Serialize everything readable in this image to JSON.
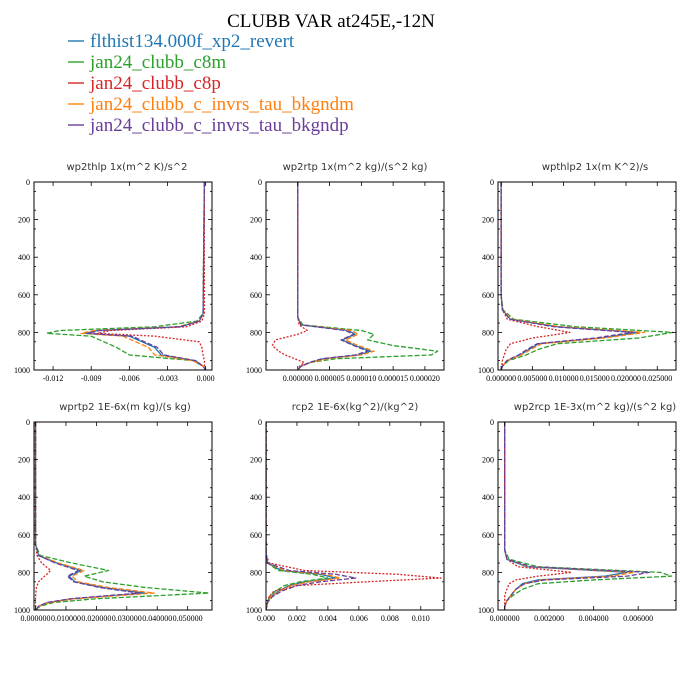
{
  "figure": {
    "title": "CLUBB VAR at245E,-12N"
  },
  "colors": {
    "flthist134.000f_xp2_revert": "#1f77b4",
    "jan24_clubb_c8m": "#2ca02c",
    "jan24_clubb_c8p": "#d62728",
    "jan24_clubb_c_invrs_tau_bkgndm": "#ff7f0e",
    "jan24_clubb_c_invrs_tau_bkgndp": "#6a3d9a"
  },
  "legend": [
    {
      "name": "flthist134.000f_xp2_revert",
      "color": "#1f77b4",
      "style": "solid"
    },
    {
      "name": "jan24_clubb_c8m",
      "color": "#2ca02c",
      "style": "dashed"
    },
    {
      "name": "jan24_clubb_c8p",
      "color": "#d62728",
      "style": "dotted"
    },
    {
      "name": "jan24_clubb_c_invrs_tau_bkgndm",
      "color": "#ff7f0e",
      "style": "dashed"
    },
    {
      "name": "jan24_clubb_c_invrs_tau_bkgndp",
      "color": "#6a3d9a",
      "style": "dashed"
    }
  ],
  "chart_data": [
    {
      "type": "line",
      "title": "wp2thlp   1x(m^2 K)/s^2",
      "xlim": [
        -0.0135,
        0.0005
      ],
      "ylim": [
        1000,
        0
      ],
      "xticks": [
        -0.012,
        -0.009,
        -0.006,
        -0.003,
        0.0
      ],
      "xtick_labels": [
        "-0.012",
        "-0.009",
        "-0.006",
        "-0.003",
        "0.000"
      ],
      "yticks": [
        0,
        200,
        400,
        600,
        800,
        1000
      ],
      "ytick_labels": [
        "0",
        "200",
        "400",
        "600",
        "800",
        "1000"
      ],
      "y": [
        0,
        700,
        740,
        770,
        790,
        805,
        820,
        850,
        880,
        920,
        950,
        980,
        1000
      ],
      "series": [
        {
          "name": "flthist134.000f_xp2_revert",
          "x": [
            -0.0001,
            -0.0002,
            -0.0005,
            -0.002,
            -0.0085,
            -0.0095,
            -0.006,
            -0.005,
            -0.004,
            -0.0035,
            -0.0008,
            -0.0002,
            0.0
          ]
        },
        {
          "name": "jan24_clubb_c8m",
          "x": [
            -0.0001,
            -0.0002,
            -0.0007,
            -0.004,
            -0.0115,
            -0.0125,
            -0.009,
            -0.008,
            -0.007,
            -0.006,
            -0.001,
            -0.0002,
            0.0
          ]
        },
        {
          "name": "jan24_clubb_c8p",
          "x": [
            -0.0001,
            -0.0001,
            -0.0003,
            -0.0015,
            -0.0075,
            -0.0085,
            -0.004,
            -0.0005,
            -0.0003,
            -0.0002,
            -0.0001,
            -0.0001,
            0.0
          ]
        },
        {
          "name": "jan24_clubb_c_invrs_tau_bkgndm",
          "x": [
            -0.0001,
            -0.0002,
            -0.0005,
            -0.0022,
            -0.0088,
            -0.0098,
            -0.0065,
            -0.0055,
            -0.0045,
            -0.004,
            -0.001,
            -0.0002,
            0.0
          ]
        },
        {
          "name": "jan24_clubb_c_invrs_tau_bkgndp",
          "x": [
            -0.0001,
            -0.0002,
            -0.0005,
            -0.002,
            -0.0083,
            -0.0093,
            -0.0058,
            -0.0048,
            -0.0038,
            -0.0033,
            -0.0008,
            -0.0002,
            0.0
          ]
        }
      ]
    },
    {
      "type": "line",
      "title": "wp2rtp   1x(m^2 kg)/(s^2 kg)",
      "xlim": [
        -5e-06,
        2.3e-05
      ],
      "ylim": [
        1000,
        0
      ],
      "xticks": [
        0.0,
        5e-06,
        1e-05,
        1.5e-05,
        2e-05
      ],
      "xtick_labels": [
        "0.000000",
        "0.000005",
        "0.000010",
        "0.000015",
        "0.000020"
      ],
      "yticks": [
        0,
        200,
        400,
        600,
        800,
        1000
      ],
      "ytick_labels": [
        "0",
        "200",
        "400",
        "600",
        "800",
        "1000"
      ],
      "y": [
        0,
        720,
        760,
        790,
        810,
        840,
        870,
        900,
        920,
        940,
        960,
        980,
        1000
      ],
      "series": [
        {
          "name": "flthist134.000f_xp2_revert",
          "x": [
            0.0,
            0.0,
            5e-07,
            8e-06,
            9e-06,
            7e-06,
            9e-06,
            1.15e-05,
            9.5e-06,
            4e-06,
            2e-06,
            5e-07,
            0.0
          ]
        },
        {
          "name": "jan24_clubb_c8m",
          "x": [
            0.0,
            0.0,
            8e-07,
            1e-05,
            1.2e-05,
            1.1e-05,
            1.5e-05,
            2.2e-05,
            2.1e-05,
            6e-06,
            2e-06,
            5e-07,
            0.0
          ]
        },
        {
          "name": "jan24_clubb_c8p",
          "x": [
            0.0,
            0.0,
            2e-07,
            1.5e-06,
            0.0,
            -3.5e-06,
            -4e-06,
            -3e-06,
            -2e-06,
            -5e-07,
            1e-06,
            3e-07,
            0.0
          ]
        },
        {
          "name": "jan24_clubb_c_invrs_tau_bkgndm",
          "x": [
            0.0,
            0.0,
            5e-07,
            8.5e-06,
            9.5e-06,
            7.5e-06,
            9.5e-06,
            1.2e-05,
            1e-05,
            4.5e-06,
            2e-06,
            5e-07,
            0.0
          ]
        },
        {
          "name": "jan24_clubb_c_invrs_tau_bkgndp",
          "x": [
            0.0,
            0.0,
            5e-07,
            7.5e-06,
            8.8e-06,
            6.8e-06,
            8.8e-06,
            1.1e-05,
            9e-06,
            3.8e-06,
            1.8e-06,
            5e-07,
            0.0
          ]
        }
      ]
    },
    {
      "type": "line",
      "title": "wpthlp2   1x(m K^2)/s",
      "xlim": [
        -0.0005,
        0.028
      ],
      "ylim": [
        1000,
        0
      ],
      "xticks": [
        0.0,
        0.005,
        0.01,
        0.015,
        0.02,
        0.025
      ],
      "xtick_labels": [
        "0.000000",
        "0.005000",
        "0.010000",
        "0.015000",
        "0.020000",
        "0.025000"
      ],
      "yticks": [
        0,
        200,
        400,
        600,
        800,
        1000
      ],
      "ytick_labels": [
        "0",
        "200",
        "400",
        "600",
        "800",
        "1000"
      ],
      "y": [
        0,
        600,
        680,
        730,
        770,
        800,
        830,
        860,
        890,
        920,
        950,
        980,
        1000
      ],
      "series": [
        {
          "name": "flthist134.000f_xp2_revert",
          "x": [
            0.0,
            0.0,
            0.0002,
            0.0015,
            0.009,
            0.022,
            0.016,
            0.006,
            0.0045,
            0.003,
            0.001,
            0.0002,
            0.0
          ]
        },
        {
          "name": "jan24_clubb_c8m",
          "x": [
            0.0,
            0.0,
            0.0003,
            0.002,
            0.012,
            0.0275,
            0.022,
            0.009,
            0.006,
            0.004,
            0.0012,
            0.0002,
            0.0
          ]
        },
        {
          "name": "jan24_clubb_c8p",
          "x": [
            0.0,
            0.0,
            0.0002,
            0.001,
            0.006,
            0.011,
            0.005,
            0.0015,
            0.0008,
            0.0005,
            0.0002,
            0.0001,
            0.0
          ]
        },
        {
          "name": "jan24_clubb_c_invrs_tau_bkgndm",
          "x": [
            0.0,
            0.0,
            0.0002,
            0.0016,
            0.0095,
            0.023,
            0.0165,
            0.0065,
            0.0048,
            0.0032,
            0.001,
            0.0002,
            0.0
          ]
        },
        {
          "name": "jan24_clubb_c_invrs_tau_bkgndp",
          "x": [
            0.0,
            0.0,
            0.0002,
            0.0014,
            0.0085,
            0.021,
            0.015,
            0.0058,
            0.0042,
            0.0028,
            0.0009,
            0.0002,
            0.0
          ]
        }
      ]
    },
    {
      "type": "line",
      "title": "wprtp2   1E-6x(m kg)/(s kg)",
      "xlim": [
        -0.0005,
        0.058
      ],
      "ylim": [
        1000,
        0
      ],
      "xticks": [
        0.0,
        0.01,
        0.02,
        0.03,
        0.04,
        0.05
      ],
      "xtick_labels": [
        "0.000000",
        "0.010000",
        "0.020000",
        "0.030000",
        "0.040000",
        "0.050000"
      ],
      "yticks": [
        0,
        200,
        400,
        600,
        800,
        1000
      ],
      "ytick_labels": [
        "0",
        "200",
        "400",
        "600",
        "800",
        "1000"
      ],
      "y": [
        0,
        650,
        710,
        750,
        790,
        820,
        850,
        880,
        910,
        940,
        960,
        980,
        1000
      ],
      "series": [
        {
          "name": "flthist134.000f_xp2_revert",
          "x": [
            0.0,
            0.0,
            0.001,
            0.007,
            0.015,
            0.011,
            0.013,
            0.022,
            0.036,
            0.012,
            0.004,
            0.001,
            0.0
          ]
        },
        {
          "name": "jan24_clubb_c8m",
          "x": [
            0.0,
            0.0,
            0.0015,
            0.012,
            0.024,
            0.016,
            0.022,
            0.036,
            0.057,
            0.02,
            0.006,
            0.0015,
            0.0
          ]
        },
        {
          "name": "jan24_clubb_c8p",
          "x": [
            0.0,
            0.0,
            0.0005,
            0.002,
            0.005,
            0.003,
            0.001,
            0.0003,
            0.0001,
            0.0,
            0.0,
            0.0,
            0.0
          ]
        },
        {
          "name": "jan24_clubb_c_invrs_tau_bkgndm",
          "x": [
            0.0,
            0.0,
            0.001,
            0.0075,
            0.016,
            0.012,
            0.014,
            0.024,
            0.039,
            0.013,
            0.0045,
            0.001,
            0.0
          ]
        },
        {
          "name": "jan24_clubb_c_invrs_tau_bkgndp",
          "x": [
            0.0,
            0.0,
            0.001,
            0.0065,
            0.014,
            0.0105,
            0.0125,
            0.021,
            0.034,
            0.0115,
            0.0038,
            0.001,
            0.0
          ]
        }
      ]
    },
    {
      "type": "line",
      "title": "rcp2   1E-6x(kg^2)/(kg^2)",
      "xlim": [
        0.0,
        0.0115
      ],
      "ylim": [
        1000,
        0
      ],
      "xticks": [
        0.0,
        0.002,
        0.004,
        0.006,
        0.008,
        0.01
      ],
      "xtick_labels": [
        "0.000",
        "0.002",
        "0.004",
        "0.006",
        "0.008",
        "0.010"
      ],
      "yticks": [
        0,
        200,
        400,
        600,
        800,
        1000
      ],
      "ytick_labels": [
        "0",
        "200",
        "400",
        "600",
        "800",
        "1000"
      ],
      "y": [
        0,
        700,
        750,
        790,
        810,
        830,
        850,
        870,
        900,
        930,
        960,
        1000
      ],
      "series": [
        {
          "name": "flthist134.000f_xp2_revert",
          "x": [
            0.0,
            0.0,
            0.0001,
            0.001,
            0.0035,
            0.0045,
            0.0025,
            0.0015,
            0.0008,
            0.0003,
            0.0001,
            0.0
          ]
        },
        {
          "name": "jan24_clubb_c8m",
          "x": [
            0.0,
            0.0,
            0.0001,
            0.0008,
            0.003,
            0.004,
            0.0022,
            0.0012,
            0.0006,
            0.0002,
            0.0001,
            0.0
          ]
        },
        {
          "name": "jan24_clubb_c8p",
          "x": [
            0.0,
            0.0,
            0.0002,
            0.0025,
            0.0085,
            0.0113,
            0.0065,
            0.002,
            0.0005,
            0.0002,
            0.0001,
            0.0
          ]
        },
        {
          "name": "jan24_clubb_c_invrs_tau_bkgndm",
          "x": [
            0.0,
            0.0,
            0.0001,
            0.0012,
            0.0038,
            0.0048,
            0.0028,
            0.0016,
            0.0009,
            0.0003,
            0.0001,
            0.0
          ]
        },
        {
          "name": "jan24_clubb_c_invrs_tau_bkgndp",
          "x": [
            0.0,
            0.0,
            0.0001,
            0.0015,
            0.0045,
            0.0058,
            0.0035,
            0.002,
            0.001,
            0.0004,
            0.0001,
            0.0
          ]
        }
      ]
    },
    {
      "type": "line",
      "title": "wp2rcp   1E-3x(m^2 kg)/(s^2 kg)",
      "xlim": [
        -0.0003,
        0.0077
      ],
      "ylim": [
        1000,
        0
      ],
      "xticks": [
        0.0,
        0.002,
        0.004,
        0.006
      ],
      "xtick_labels": [
        "0.000000",
        "0.002000",
        "0.004000",
        "0.006000"
      ],
      "yticks": [
        0,
        200,
        400,
        600,
        800,
        1000
      ],
      "ytick_labels": [
        "0",
        "200",
        "400",
        "600",
        "800",
        "1000"
      ],
      "y": [
        0,
        680,
        730,
        770,
        800,
        820,
        840,
        860,
        890,
        920,
        950,
        980,
        1000
      ],
      "series": [
        {
          "name": "flthist134.000f_xp2_revert",
          "x": [
            0.0,
            0.0,
            0.0001,
            0.001,
            0.0055,
            0.0045,
            0.0015,
            0.0008,
            0.0005,
            0.0003,
            0.0001,
            0.0,
            0.0
          ]
        },
        {
          "name": "jan24_clubb_c8m",
          "x": [
            0.0,
            0.0,
            0.0002,
            0.0015,
            0.007,
            0.0075,
            0.004,
            0.0015,
            0.0008,
            0.0004,
            0.0001,
            0.0,
            0.0
          ]
        },
        {
          "name": "jan24_clubb_c8p",
          "x": [
            0.0,
            0.0,
            0.0001,
            0.0006,
            0.003,
            0.0015,
            0.0005,
            0.0002,
            0.0001,
            0.0,
            0.0,
            0.0,
            0.0
          ]
        },
        {
          "name": "jan24_clubb_c_invrs_tau_bkgndm",
          "x": [
            0.0,
            0.0,
            0.0001,
            0.0011,
            0.0058,
            0.0048,
            0.0017,
            0.0009,
            0.0005,
            0.0003,
            0.0001,
            0.0,
            0.0
          ]
        },
        {
          "name": "jan24_clubb_c_invrs_tau_bkgndp",
          "x": [
            0.0,
            0.0,
            0.0001,
            0.0012,
            0.0065,
            0.0055,
            0.0018,
            0.0009,
            0.0005,
            0.0003,
            0.0001,
            0.0,
            0.0
          ]
        }
      ]
    }
  ]
}
